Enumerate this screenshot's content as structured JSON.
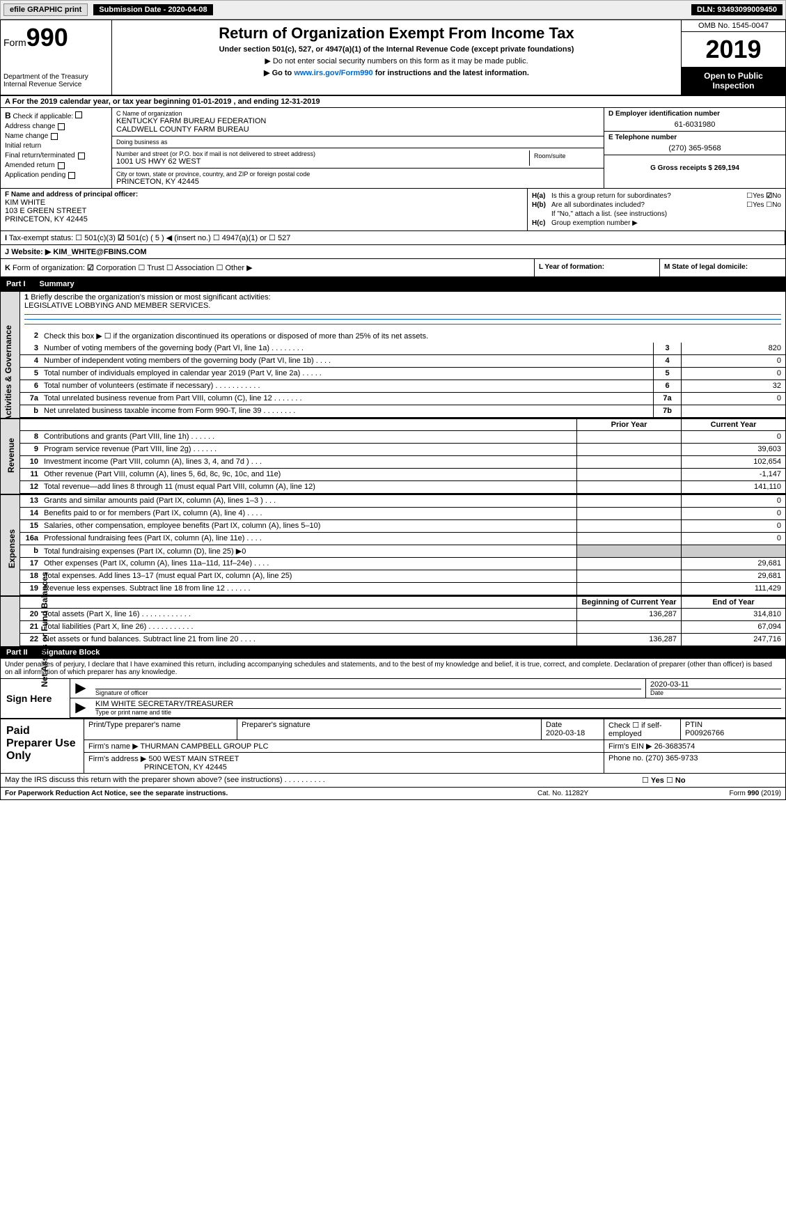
{
  "topbar": {
    "efile_label": "efile GRAPHIC print",
    "submission_label": "Submission Date - 2020-04-08",
    "dln": "DLN: 93493099009450"
  },
  "header": {
    "form_prefix": "Form",
    "form_number": "990",
    "dept1": "Department of the Treasury",
    "dept2": "Internal Revenue Service",
    "title": "Return of Organization Exempt From Income Tax",
    "sub1": "Under section 501(c), 527, or 4947(a)(1) of the Internal Revenue Code (except private foundations)",
    "sub2": "▶ Do not enter social security numbers on this form as it may be made public.",
    "sub3_prefix": "▶ Go to ",
    "sub3_link": "www.irs.gov/Form990",
    "sub3_suffix": " for instructions and the latest information.",
    "omb": "OMB No. 1545-0047",
    "year": "2019",
    "open_public": "Open to Public Inspection"
  },
  "row_a": {
    "letter": "A",
    "text": "For the 2019 calendar year, or tax year beginning 01-01-2019",
    "ending": ", and ending 12-31-2019"
  },
  "col_b": {
    "letter": "B",
    "check_label": "Check if applicable:",
    "items": [
      "Address change",
      "Name change",
      "Initial return",
      "Final return/terminated",
      "Amended return",
      "Application pending"
    ]
  },
  "col_c": {
    "name_label": "C Name of organization",
    "name1": "KENTUCKY FARM BUREAU FEDERATION",
    "name2": "CALDWELL COUNTY FARM BUREAU",
    "dba_label": "Doing business as",
    "dba": "",
    "street_label": "Number and street (or P.O. box if mail is not delivered to street address)",
    "street": "1001 US HWY 62 WEST",
    "room_label": "Room/suite",
    "room": "",
    "city_label": "City or town, state or province, country, and ZIP or foreign postal code",
    "city": "PRINCETON, KY  42445"
  },
  "col_d": {
    "ein_label": "D Employer identification number",
    "ein": "61-6031980",
    "phone_label": "E Telephone number",
    "phone": "(270) 365-9568",
    "gross_label": "G Gross receipts $ 269,194"
  },
  "col_f": {
    "label": "F Name and address of principal officer:",
    "name": "KIM WHITE",
    "street": "103 E GREEN STREET",
    "city": "PRINCETON, KY  42445"
  },
  "col_h": {
    "ha_label": "H(a)",
    "ha_text": "Is this a group return for subordinates?",
    "hb_label": "H(b)",
    "hb_text": "Are all subordinates included?",
    "hb_note": "If \"No,\" attach a list. (see instructions)",
    "hc_label": "H(c)",
    "hc_text": "Group exemption number ▶",
    "yes": "Yes",
    "no": "No",
    "ha_answer_no": true
  },
  "row_i": {
    "letter": "I",
    "label": "Tax-exempt status:",
    "opt1": "501(c)(3)",
    "opt2": "501(c) ( 5 ) ◀ (insert no.)",
    "opt3": "4947(a)(1) or",
    "opt4": "527"
  },
  "row_j": {
    "letter": "J",
    "label": "Website: ▶",
    "val": "KIM_WHITE@FBINS.COM"
  },
  "row_k": {
    "letter": "K",
    "label": "Form of organization:",
    "opts": [
      "Corporation",
      "Trust",
      "Association",
      "Other ▶"
    ]
  },
  "row_l": {
    "label": "L Year of formation:"
  },
  "row_m": {
    "label": "M State of legal domicile:"
  },
  "part1": {
    "num": "Part I",
    "title": "Summary"
  },
  "governance": {
    "vert": "Activities & Governance",
    "line1_num": "1",
    "line1": "Briefly describe the organization's mission or most significant activities:",
    "line1_val": "LEGISLATIVE LOBBYING AND MEMBER SERVICES.",
    "line2_num": "2",
    "line2": "Check this box ▶ ☐ if the organization discontinued its operations or disposed of more than 25% of its net assets.",
    "rows": [
      {
        "num": "3",
        "text": "Number of voting members of the governing body (Part VI, line 1a)   .     .     .     .     .     .     .     .",
        "refnum": "3",
        "val": "820"
      },
      {
        "num": "4",
        "text": "Number of independent voting members of the governing body (Part VI, line 1b)   .     .     .     .",
        "refnum": "4",
        "val": "0"
      },
      {
        "num": "5",
        "text": "Total number of individuals employed in calendar year 2019 (Part V, line 2a)   .     .     .     .     .",
        "refnum": "5",
        "val": "0"
      },
      {
        "num": "6",
        "text": "Total number of volunteers (estimate if necessary)   .     .     .     .     .     .     .     .     .     .     .",
        "refnum": "6",
        "val": "32"
      },
      {
        "num": "7a",
        "text": "Total unrelated business revenue from Part VIII, column (C), line 12   .     .     .     .     .     .     .",
        "refnum": "7a",
        "val": "0"
      },
      {
        "num": "b",
        "text": "Net unrelated business taxable income from Form 990-T, line 39   .     .     .     .     .     .     .     .",
        "refnum": "7b",
        "val": ""
      }
    ]
  },
  "revenue": {
    "vert": "Revenue",
    "prior_label": "Prior Year",
    "current_label": "Current Year",
    "rows": [
      {
        "num": "8",
        "text": "Contributions and grants (Part VIII, line 1h)   .     .     .     .     .     .",
        "prior": "",
        "current": "0"
      },
      {
        "num": "9",
        "text": "Program service revenue (Part VIII, line 2g)   .     .     .     .     .     .",
        "prior": "",
        "current": "39,603"
      },
      {
        "num": "10",
        "text": "Investment income (Part VIII, column (A), lines 3, 4, and 7d )   .     .     .",
        "prior": "",
        "current": "102,654"
      },
      {
        "num": "11",
        "text": "Other revenue (Part VIII, column (A), lines 5, 6d, 8c, 9c, 10c, and 11e)",
        "prior": "",
        "current": "-1,147"
      },
      {
        "num": "12",
        "text": "Total revenue—add lines 8 through 11 (must equal Part VIII, column (A), line 12)",
        "prior": "",
        "current": "141,110"
      }
    ]
  },
  "expenses": {
    "vert": "Expenses",
    "rows": [
      {
        "num": "13",
        "text": "Grants and similar amounts paid (Part IX, column (A), lines 1–3 )   .     .     .",
        "prior": "",
        "current": "0"
      },
      {
        "num": "14",
        "text": "Benefits paid to or for members (Part IX, column (A), line 4)   .     .     .     .",
        "prior": "",
        "current": "0"
      },
      {
        "num": "15",
        "text": "Salaries, other compensation, employee benefits (Part IX, column (A), lines 5–10)",
        "prior": "",
        "current": "0"
      },
      {
        "num": "16a",
        "text": "Professional fundraising fees (Part IX, column (A), line 11e)   .     .     .     .",
        "prior": "",
        "current": "0"
      },
      {
        "num": "b",
        "text": "Total fundraising expenses (Part IX, column (D), line 25) ▶0",
        "prior": "shaded",
        "current": "shaded"
      },
      {
        "num": "17",
        "text": "Other expenses (Part IX, column (A), lines 11a–11d, 11f–24e)   .     .     .     .",
        "prior": "",
        "current": "29,681"
      },
      {
        "num": "18",
        "text": "Total expenses. Add lines 13–17 (must equal Part IX, column (A), line 25)",
        "prior": "",
        "current": "29,681"
      },
      {
        "num": "19",
        "text": "Revenue less expenses. Subtract line 18 from line 12   .     .     .     .     .     .",
        "prior": "",
        "current": "111,429"
      }
    ]
  },
  "netassets": {
    "vert": "Net Assets or Fund Balances",
    "begin_label": "Beginning of Current Year",
    "end_label": "End of Year",
    "rows": [
      {
        "num": "20",
        "text": "Total assets (Part X, line 16)   .     .     .     .     .     .     .     .     .     .     .     .",
        "begin": "136,287",
        "end": "314,810"
      },
      {
        "num": "21",
        "text": "Total liabilities (Part X, line 26)   .     .     .     .     .     .     .     .     .     .     .",
        "begin": "",
        "end": "67,094"
      },
      {
        "num": "22",
        "text": "Net assets or fund balances. Subtract line 21 from line 20   .     .     .     .",
        "begin": "136,287",
        "end": "247,716"
      }
    ]
  },
  "part2": {
    "num": "Part II",
    "title": "Signature Block"
  },
  "perjury": "Under penalties of perjury, I declare that I have examined this return, including accompanying schedules and statements, and to the best of my knowledge and belief, it is true, correct, and complete. Declaration of preparer (other than officer) is based on all information of which preparer has any knowledge.",
  "sign": {
    "label": "Sign Here",
    "sig_label": "Signature of officer",
    "date_label": "Date",
    "date_val": "2020-03-11",
    "name_val": "KIM WHITE  SECRETARY/TREASURER",
    "name_label": "Type or print name and title"
  },
  "preparer": {
    "label": "Paid Preparer Use Only",
    "name_label": "Print/Type preparer's name",
    "sig_label": "Preparer's signature",
    "date_label": "Date",
    "date_val": "2020-03-18",
    "check_label": "Check ☐ if self-employed",
    "ptin_label": "PTIN",
    "ptin_val": "P00926766",
    "firm_name_label": "Firm's name   ▶",
    "firm_name": "THURMAN CAMPBELL GROUP PLC",
    "firm_ein_label": "Firm's EIN ▶",
    "firm_ein": "26-3683574",
    "firm_addr_label": "Firm's address ▶",
    "firm_addr1": "500 WEST MAIN STREET",
    "firm_addr2": "PRINCETON, KY  42445",
    "phone_label": "Phone no.",
    "phone": "(270) 365-9733"
  },
  "discuss": {
    "text": "May the IRS discuss this return with the preparer shown above? (see instructions)   .     .     .     .     .     .     .     .     .     .",
    "yes": "Yes",
    "no": "No"
  },
  "footer": {
    "left": "For Paperwork Reduction Act Notice, see the separate instructions.",
    "mid": "Cat. No. 11282Y",
    "right": "Form 990 (2019)"
  }
}
